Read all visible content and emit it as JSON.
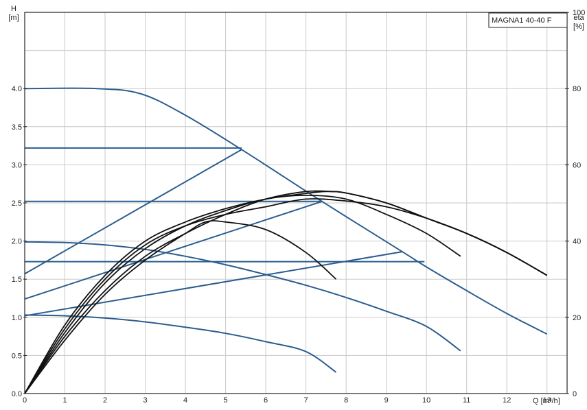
{
  "chart_data": {
    "type": "line",
    "title": "MAGNA1 40-40 F",
    "x_axis": {
      "label": "Q [m³/h]",
      "lim": [
        0,
        13.5
      ],
      "ticks": [
        0,
        1,
        2,
        3,
        4,
        5,
        6,
        7,
        8,
        9,
        10,
        11,
        12,
        13
      ]
    },
    "y_left": {
      "label_top": "H",
      "label_unit": "[m]",
      "lim": [
        0,
        5
      ],
      "ticks": [
        0.0,
        0.5,
        1.0,
        1.5,
        2.0,
        2.5,
        3.0,
        3.5,
        4.0
      ]
    },
    "y_right": {
      "label_top": "eta",
      "label_unit": "[%]",
      "lim": [
        0,
        100
      ],
      "ticks": [
        0,
        20,
        40,
        60,
        80,
        100
      ]
    },
    "grid": true,
    "colors": {
      "head": "#2a5d8f",
      "efficiency": "#111111",
      "grid": "#c9c9c9"
    },
    "head_series": [
      {
        "points": [
          [
            0,
            4.0
          ],
          [
            1.8,
            4.0
          ],
          [
            2.9,
            3.93
          ],
          [
            4,
            3.65
          ],
          [
            5.4,
            3.2
          ],
          [
            7.4,
            2.52
          ],
          [
            9.4,
            1.86
          ],
          [
            10,
            1.66
          ],
          [
            11,
            1.35
          ],
          [
            12,
            1.05
          ],
          [
            13,
            0.78
          ]
        ]
      },
      {
        "points": [
          [
            0,
            3.22
          ],
          [
            5.4,
            3.22
          ]
        ]
      },
      {
        "points": [
          [
            0,
            2.52
          ],
          [
            7.4,
            2.52
          ]
        ]
      },
      {
        "points": [
          [
            0,
            1.73
          ],
          [
            9.95,
            1.73
          ]
        ]
      },
      {
        "points": [
          [
            0,
            1.57
          ],
          [
            5.4,
            3.2
          ]
        ]
      },
      {
        "points": [
          [
            0,
            1.24
          ],
          [
            7.4,
            2.52
          ]
        ]
      },
      {
        "points": [
          [
            0,
            1.02
          ],
          [
            9.4,
            1.86
          ]
        ]
      },
      {
        "points": [
          [
            0,
            1.99
          ],
          [
            1,
            1.98
          ],
          [
            2,
            1.95
          ],
          [
            3,
            1.89
          ],
          [
            4,
            1.8
          ],
          [
            5,
            1.69
          ],
          [
            6,
            1.56
          ],
          [
            7,
            1.42
          ],
          [
            8,
            1.26
          ],
          [
            9,
            1.08
          ],
          [
            10,
            0.88
          ],
          [
            10.85,
            0.56
          ]
        ]
      },
      {
        "points": [
          [
            0,
            1.03
          ],
          [
            1,
            1.02
          ],
          [
            2,
            0.99
          ],
          [
            3,
            0.94
          ],
          [
            4,
            0.87
          ],
          [
            5,
            0.79
          ],
          [
            6,
            0.68
          ],
          [
            7,
            0.55
          ],
          [
            7.75,
            0.28
          ]
        ]
      }
    ],
    "efficiency_series": [
      {
        "points": [
          [
            0,
            0
          ],
          [
            1,
            17
          ],
          [
            2,
            30
          ],
          [
            3,
            39
          ],
          [
            4,
            44
          ],
          [
            5,
            47
          ],
          [
            6,
            49
          ],
          [
            7,
            51
          ],
          [
            8,
            50.5
          ],
          [
            9,
            49
          ],
          [
            10,
            46
          ],
          [
            11,
            42
          ],
          [
            12,
            37
          ],
          [
            13,
            31
          ]
        ]
      },
      {
        "points": [
          [
            0,
            0
          ],
          [
            1,
            18
          ],
          [
            2,
            31
          ],
          [
            3,
            40
          ],
          [
            4,
            45
          ],
          [
            5,
            48.5
          ],
          [
            6,
            51
          ],
          [
            7,
            52.5
          ],
          [
            7.5,
            53
          ],
          [
            8,
            52.6
          ],
          [
            9,
            50
          ],
          [
            10,
            46
          ],
          [
            11,
            42
          ],
          [
            12,
            37
          ],
          [
            13,
            31
          ]
        ]
      },
      {
        "points": [
          [
            0,
            0
          ],
          [
            1,
            15
          ],
          [
            2,
            27
          ],
          [
            3,
            36
          ],
          [
            4,
            42
          ],
          [
            5,
            47
          ],
          [
            6,
            51
          ],
          [
            7,
            53
          ],
          [
            7.6,
            53
          ],
          [
            8,
            52.6
          ],
          [
            9,
            50
          ],
          [
            10,
            46
          ],
          [
            11,
            42
          ],
          [
            12,
            37
          ],
          [
            13,
            31
          ]
        ]
      },
      {
        "points": [
          [
            0,
            0
          ],
          [
            1,
            16
          ],
          [
            2,
            29
          ],
          [
            3,
            38
          ],
          [
            4,
            44
          ],
          [
            5,
            48
          ],
          [
            6,
            51
          ],
          [
            7,
            52
          ],
          [
            8,
            51
          ],
          [
            9,
            47
          ],
          [
            10,
            42
          ],
          [
            10.85,
            36
          ]
        ]
      },
      {
        "points": [
          [
            0,
            0
          ],
          [
            1,
            14
          ],
          [
            2,
            26
          ],
          [
            3,
            35
          ],
          [
            4,
            42
          ],
          [
            4.5,
            45
          ],
          [
            5,
            45
          ],
          [
            6,
            43
          ],
          [
            7,
            37
          ],
          [
            7.75,
            30
          ]
        ]
      }
    ]
  }
}
